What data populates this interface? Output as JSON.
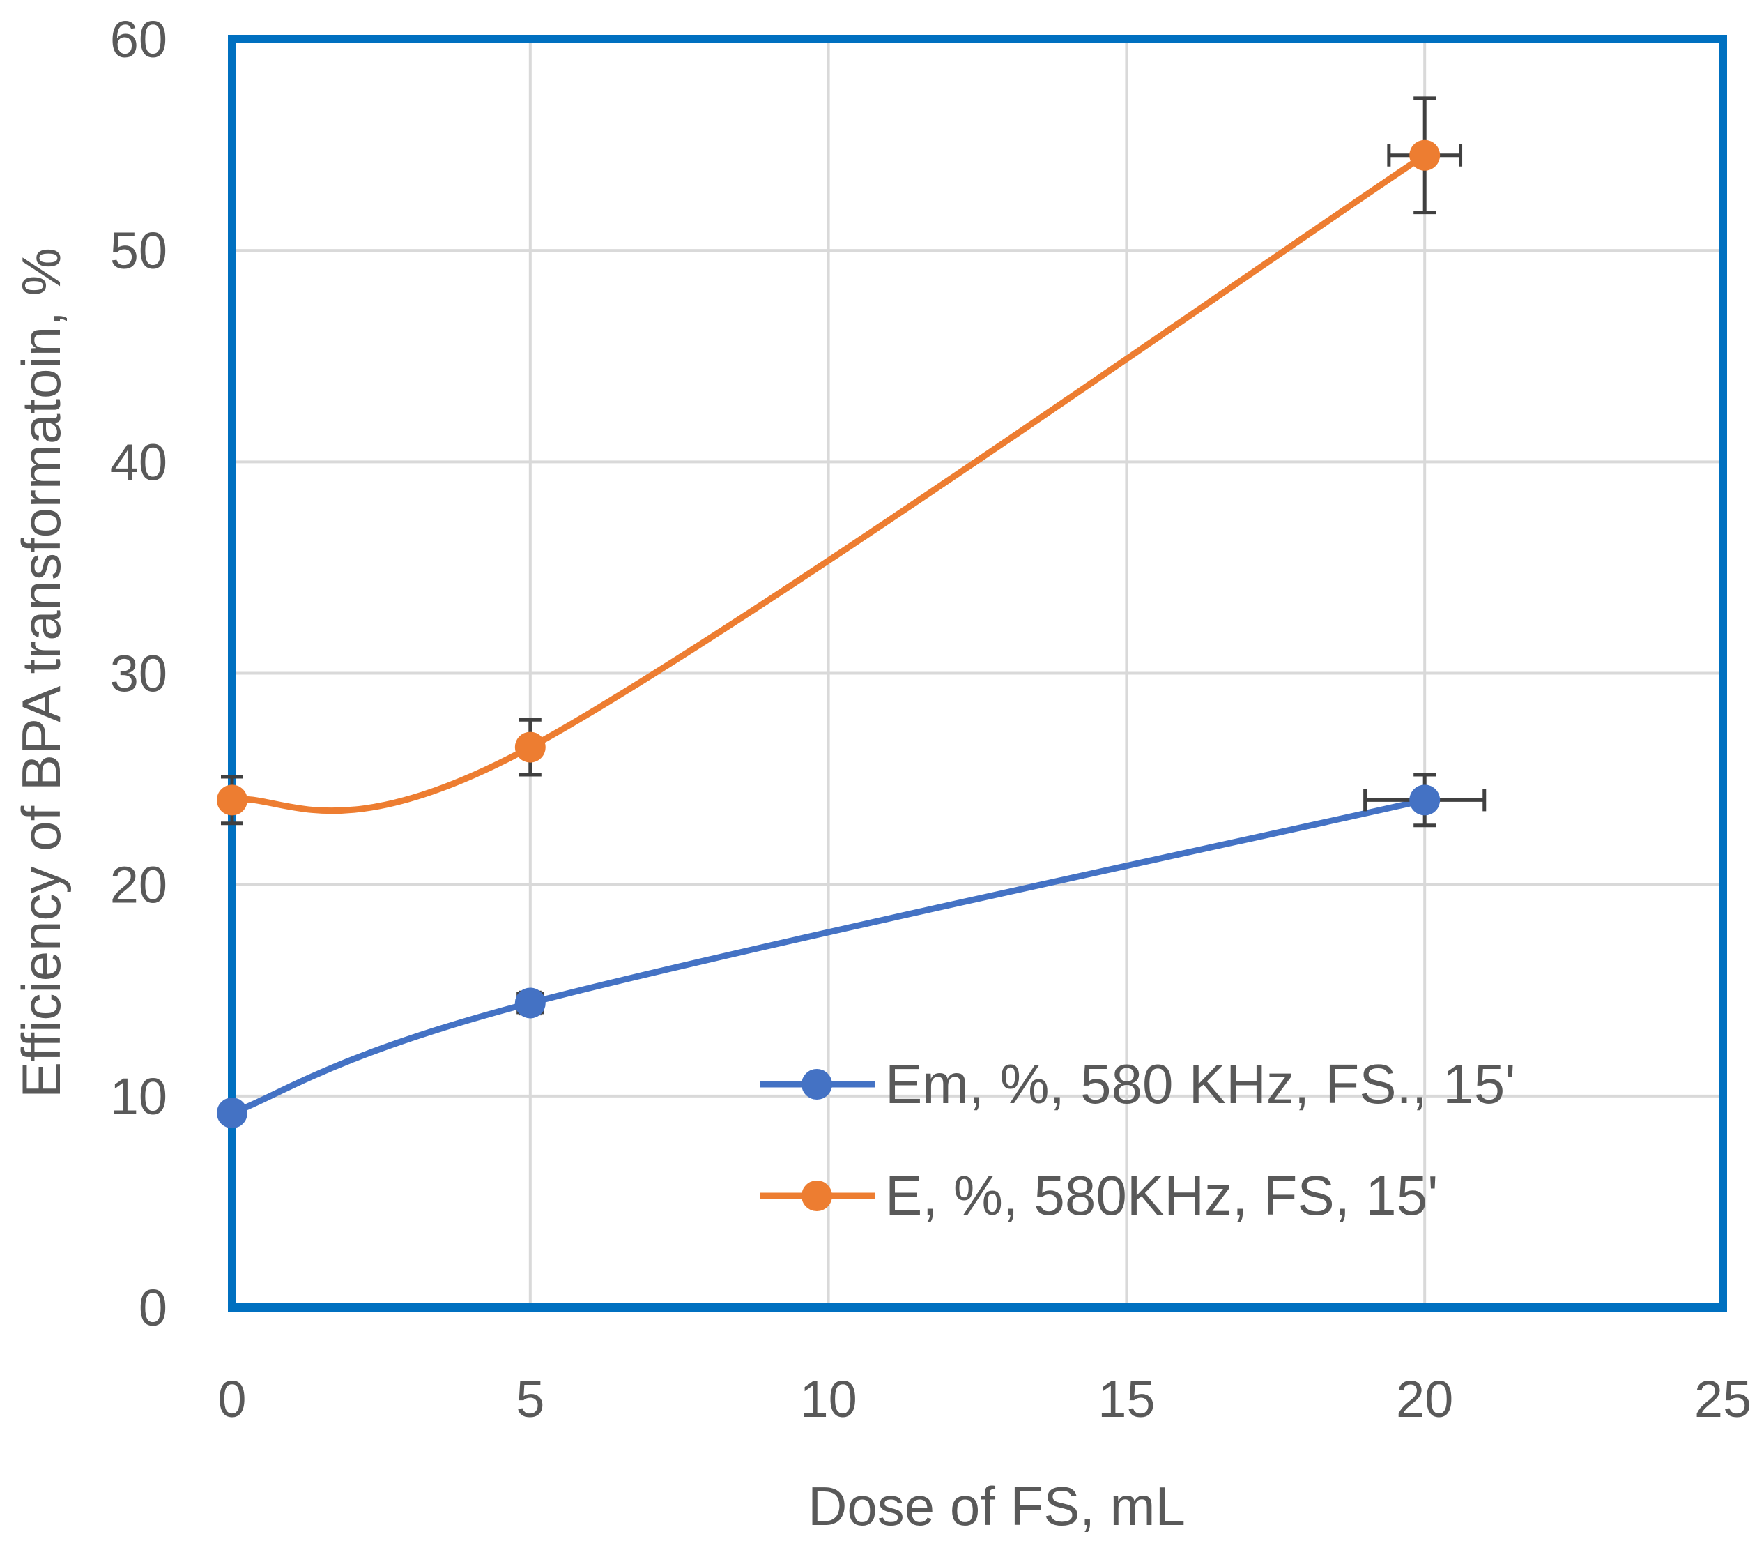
{
  "chart_data": {
    "type": "line",
    "title": "",
    "xlabel": "Dose of FS, mL",
    "ylabel": "Efficiency of BPA transformatoin, %",
    "xlim": [
      0,
      25
    ],
    "ylim": [
      0,
      60
    ],
    "xticks": [
      "0",
      "5",
      "10",
      "15",
      "20",
      "25"
    ],
    "yticks": [
      "0",
      "10",
      "20",
      "30",
      "40",
      "50",
      "60"
    ],
    "grid": true,
    "legend_position": "lower-right",
    "series": [
      {
        "name": "Em, %, 580 KHz, FS., 15'",
        "color": "#4472C4",
        "points": [
          {
            "x": 0,
            "y": 9.2,
            "yerr": 0,
            "xerr": 0
          },
          {
            "x": 5,
            "y": 14.4,
            "yerr": 0.5,
            "xerr": 0.2
          },
          {
            "x": 20,
            "y": 24.0,
            "yerr": 1.2,
            "xerr": 1.0
          }
        ]
      },
      {
        "name": "E, %, 580KHz, FS, 15'",
        "color": "#ED7D31",
        "points": [
          {
            "x": 0,
            "y": 24.0,
            "yerr": 1.1,
            "xerr": 0
          },
          {
            "x": 5,
            "y": 26.5,
            "yerr": 1.3,
            "xerr": 0
          },
          {
            "x": 20,
            "y": 54.5,
            "yerr": 2.7,
            "xerr": 0.6
          }
        ]
      }
    ]
  }
}
